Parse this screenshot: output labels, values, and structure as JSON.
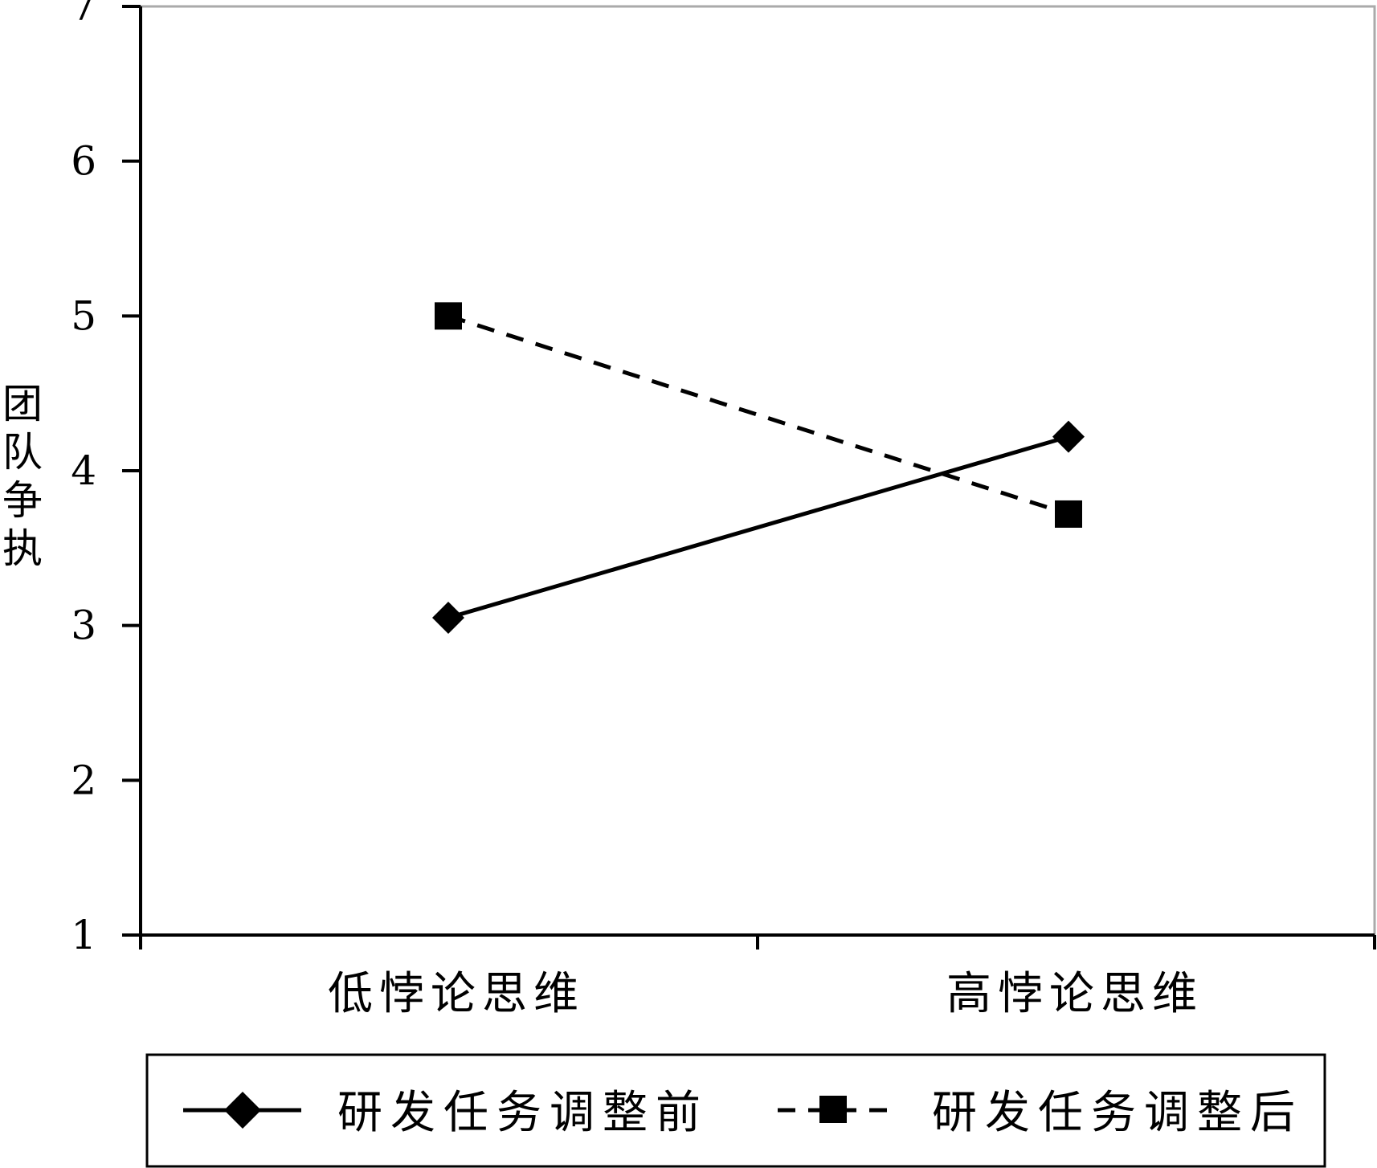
{
  "chart_data": {
    "type": "line",
    "categories": [
      "低悖论思维",
      "高悖论思维"
    ],
    "ylabel": "团队争执",
    "ylim": [
      1,
      7
    ],
    "yticks": [
      1,
      2,
      3,
      4,
      5,
      6,
      7
    ],
    "grid": false,
    "legend_position": "bottom",
    "series": [
      {
        "name": "研发任务调整前",
        "values": [
          3.05,
          4.22
        ],
        "marker": "diamond",
        "line_style": "solid",
        "color": "#000000"
      },
      {
        "name": "研发任务调整后",
        "values": [
          5.0,
          3.72
        ],
        "marker": "square",
        "line_style": "dashed",
        "color": "#000000"
      }
    ]
  }
}
